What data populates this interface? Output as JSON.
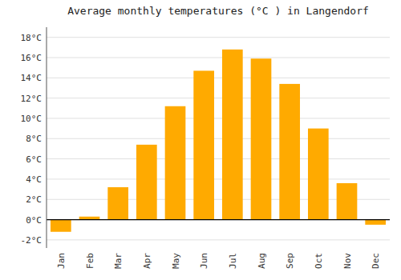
{
  "chart_data": {
    "type": "bar",
    "title": "Average monthly temperatures (°C ) in Langendorf",
    "categories": [
      "Jan",
      "Feb",
      "Mar",
      "Apr",
      "May",
      "Jun",
      "Jul",
      "Aug",
      "Sep",
      "Oct",
      "Nov",
      "Dec"
    ],
    "values": [
      -1.2,
      0.3,
      3.2,
      7.4,
      11.2,
      14.7,
      16.8,
      15.9,
      13.4,
      9.0,
      3.6,
      -0.5
    ],
    "color": "#FFAA00",
    "ylim": [
      -2.8,
      19.0
    ],
    "yticks": [
      {
        "value": -2,
        "label": "-2°C"
      },
      {
        "value": 0,
        "label": "0°C"
      },
      {
        "value": 2,
        "label": "2°C"
      },
      {
        "value": 4,
        "label": "4°C"
      },
      {
        "value": 6,
        "label": "6°C"
      },
      {
        "value": 8,
        "label": "8°C"
      },
      {
        "value": 10,
        "label": "10°C"
      },
      {
        "value": 12,
        "label": "12°C"
      },
      {
        "value": 14,
        "label": "14°C"
      },
      {
        "value": 16,
        "label": "16°C"
      },
      {
        "value": 18,
        "label": "18°C"
      }
    ],
    "grid": true
  }
}
